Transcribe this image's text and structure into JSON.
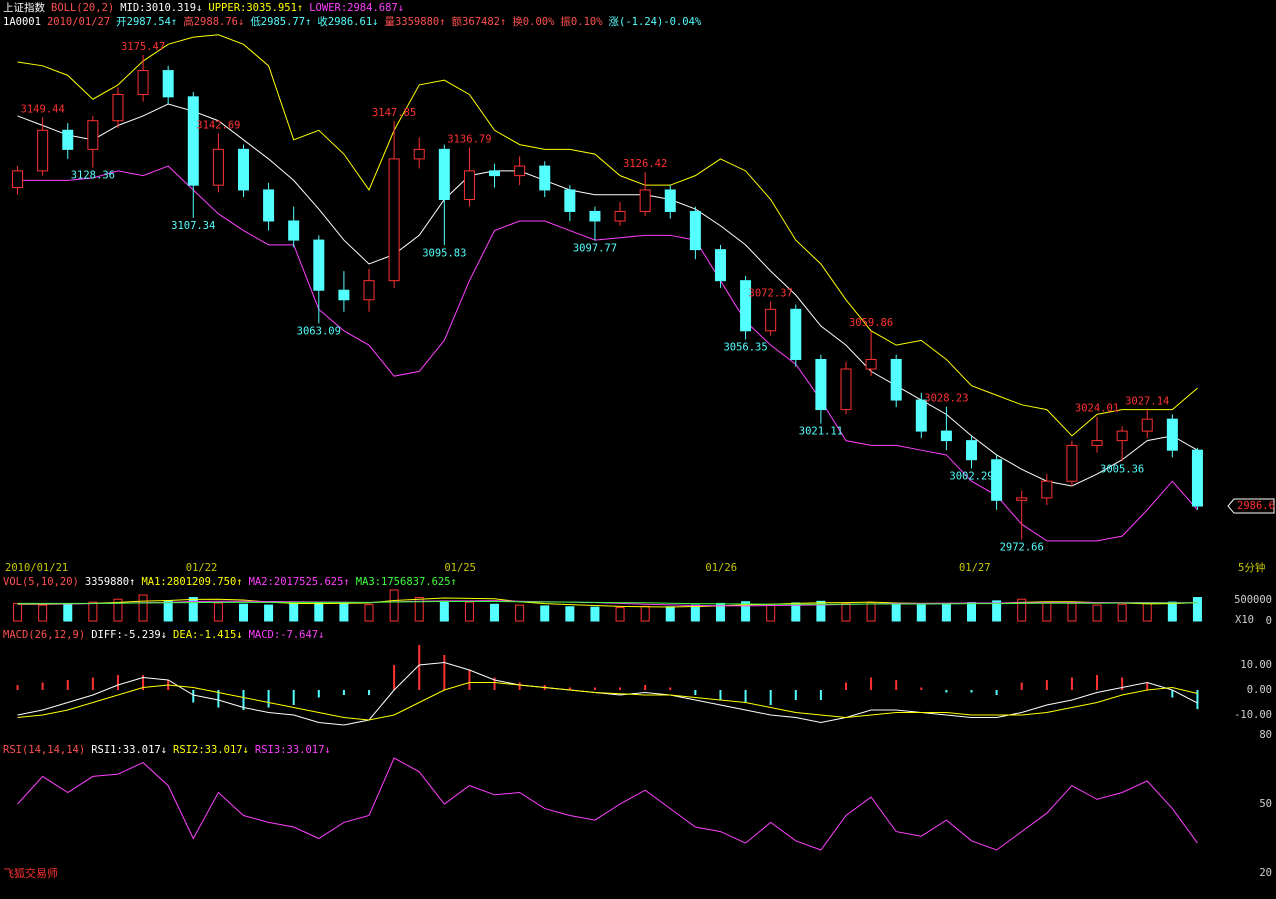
{
  "chart_data": [
    {
      "type": "candlestick",
      "title": "上证指数",
      "legend": [
        {
          "text": "BOLL(20,2)",
          "color": "#ff5050"
        },
        {
          "text": "MID:3010.319↓",
          "color": "#ffffff"
        },
        {
          "text": "UPPER:3035.951↑",
          "color": "#ffff00"
        },
        {
          "text": "LOWER:2984.687↓",
          "color": "#ff40ff"
        }
      ],
      "info": [
        {
          "text": "1A0001",
          "color": "#ffffff"
        },
        {
          "text": "2010/01/27",
          "color": "#ff5050"
        },
        {
          "text": "开2987.54↑",
          "color": "#54ffff"
        },
        {
          "text": "高2988.76↓",
          "color": "#ff5050"
        },
        {
          "text": "低2985.77↑",
          "color": "#54ffff"
        },
        {
          "text": "收2986.61↓",
          "color": "#54ffff"
        },
        {
          "text": "量3359880↑",
          "color": "#ff5050"
        },
        {
          "text": "额367482↑",
          "color": "#ff5050"
        },
        {
          "text": "换0.00%",
          "color": "#ff5050"
        },
        {
          "text": "振0.10%",
          "color": "#ff5050"
        },
        {
          "text": "涨(-1.24)-0.04%",
          "color": "#54ffff"
        }
      ],
      "x": [
        0,
        1,
        2,
        3,
        4,
        5,
        6,
        7,
        8,
        9,
        10,
        11,
        12,
        13,
        14,
        15,
        16,
        17,
        18,
        19,
        20,
        21,
        22,
        23,
        24,
        25,
        26,
        27,
        28,
        29,
        30,
        31,
        32,
        33,
        34,
        35,
        36,
        37,
        38,
        39,
        40,
        41,
        42,
        43,
        44,
        45,
        46,
        47
      ],
      "open": [
        3120,
        3127,
        3144,
        3136,
        3148,
        3159,
        3169,
        3158,
        3121,
        3136,
        3119,
        3106,
        3098,
        3077,
        3073,
        3081,
        3132,
        3136,
        3115,
        3127,
        3125,
        3129,
        3119,
        3110,
        3106,
        3110,
        3119,
        3110,
        3094,
        3081,
        3060,
        3069,
        3048,
        3027,
        3044,
        3048,
        3031,
        3018,
        3014,
        3006,
        2989,
        2990,
        2997,
        3012,
        3014,
        3018,
        3023,
        3010
      ],
      "high": [
        3129,
        3149.44,
        3147,
        3150,
        3162,
        3175.47,
        3171,
        3160,
        3142.69,
        3138,
        3122,
        3112,
        3100,
        3085,
        3086,
        3147.85,
        3141,
        3138,
        3136.79,
        3130,
        3133,
        3131,
        3121,
        3112,
        3114,
        3126.42,
        3121,
        3112,
        3096,
        3083,
        3072.37,
        3071,
        3050,
        3047,
        3059.86,
        3050,
        3034,
        3028.23,
        3016,
        3008,
        2993,
        3000,
        3014,
        3024.01,
        3020,
        3027.14,
        3025,
        3011
      ],
      "low": [
        3117,
        3125,
        3132,
        3128.36,
        3145,
        3156,
        3155,
        3107.34,
        3118,
        3116,
        3102,
        3095,
        3063.09,
        3068,
        3068,
        3078,
        3128,
        3095.83,
        3112,
        3120,
        3121,
        3116,
        3106,
        3097.77,
        3104,
        3108,
        3107,
        3090,
        3078,
        3056.35,
        3058,
        3045,
        3021.11,
        3025,
        3041,
        3028,
        3015,
        3010,
        3002.29,
        2985,
        2972.66,
        2987,
        2995,
        3009,
        3005.36,
        3015,
        3007,
        2985
      ],
      "close": [
        3127,
        3144,
        3136,
        3148,
        3159,
        3169,
        3158,
        3121,
        3136,
        3119,
        3106,
        3098,
        3077,
        3073,
        3081,
        3132,
        3136,
        3115,
        3127,
        3125,
        3129,
        3119,
        3110,
        3106,
        3110,
        3119,
        3110,
        3094,
        3081,
        3060,
        3069,
        3048,
        3027,
        3044,
        3048,
        3031,
        3018,
        3014,
        3006,
        2989,
        2990,
        2997,
        3012,
        3014,
        3018,
        3023,
        3010,
        2986.61
      ],
      "up_color": "#ff3232",
      "down_color": "#54ffff",
      "series": [
        {
          "color": "#ffffff",
          "values": [
            3150,
            3146,
            3142,
            3140,
            3146,
            3150,
            3155,
            3152,
            3148,
            3140,
            3132,
            3123,
            3111,
            3098,
            3088,
            3092,
            3100,
            3115,
            3125,
            3127,
            3127,
            3123,
            3119,
            3117,
            3117,
            3117,
            3115,
            3111,
            3104,
            3096,
            3085,
            3075,
            3062,
            3054,
            3043,
            3037,
            3031,
            3025,
            3016,
            3008,
            3002,
            2997,
            2995,
            3000,
            3006,
            3014,
            3016,
            3010
          ]
        },
        {
          "color": "#ffff00",
          "values": [
            3172.6,
            3171,
            3167,
            3157,
            3163,
            3173,
            3180,
            3183,
            3184,
            3180,
            3171,
            3140,
            3144,
            3134,
            3119,
            3144,
            3163,
            3165,
            3159,
            3144,
            3138,
            3136,
            3136,
            3134,
            3125,
            3121,
            3121,
            3125,
            3132,
            3127,
            3115,
            3098,
            3088,
            3073,
            3060,
            3054,
            3056,
            3048,
            3037,
            3033,
            3029,
            3027,
            3016,
            3025,
            3027,
            3027,
            3027,
            3036
          ]
        },
        {
          "color": "#ff40ff",
          "values": [
            3123,
            3123,
            3123,
            3124,
            3127,
            3125,
            3129,
            3119,
            3109,
            3102,
            3096,
            3096,
            3069,
            3060,
            3054,
            3041,
            3043,
            3056,
            3081,
            3102,
            3106,
            3106,
            3102,
            3098,
            3099,
            3100,
            3100,
            3098,
            3081,
            3064,
            3054,
            3046,
            3031,
            3014,
            3012,
            3012,
            3010,
            3008,
            2997,
            2991,
            2979,
            2972,
            2972,
            2972,
            2974,
            2985,
            2997,
            2985
          ]
        }
      ],
      "annotations": [
        {
          "x": 1,
          "value": 3149.44,
          "kind": "high"
        },
        {
          "x": 5,
          "value": 3175.47,
          "kind": "high"
        },
        {
          "x": 8,
          "value": 3142.69,
          "kind": "high"
        },
        {
          "x": 15,
          "value": 3147.85,
          "kind": "high"
        },
        {
          "x": 18,
          "value": 3136.79,
          "kind": "high"
        },
        {
          "x": 25,
          "value": 3126.42,
          "kind": "high"
        },
        {
          "x": 30,
          "value": 3072.37,
          "kind": "high"
        },
        {
          "x": 34,
          "value": 3059.86,
          "kind": "high"
        },
        {
          "x": 37,
          "value": 3028.23,
          "kind": "high"
        },
        {
          "x": 43,
          "value": 3024.01,
          "kind": "high"
        },
        {
          "x": 45,
          "value": 3027.14,
          "kind": "high"
        },
        {
          "x": 3,
          "value": 3128.36,
          "kind": "low"
        },
        {
          "x": 7,
          "value": 3107.34,
          "kind": "low"
        },
        {
          "x": 12,
          "value": 3063.09,
          "kind": "low"
        },
        {
          "x": 17,
          "value": 3095.83,
          "kind": "low"
        },
        {
          "x": 23,
          "value": 3097.77,
          "kind": "low"
        },
        {
          "x": 29,
          "value": 3056.35,
          "kind": "low"
        },
        {
          "x": 32,
          "value": 3021.11,
          "kind": "low"
        },
        {
          "x": 38,
          "value": 3002.29,
          "kind": "low"
        },
        {
          "x": 40,
          "value": 2972.66,
          "kind": "low"
        },
        {
          "x": 44,
          "value": 3005.36,
          "kind": "low"
        }
      ],
      "xlim": [
        -0.5,
        47.5
      ],
      "xticks": [
        {
          "value": -0.5,
          "label": "2010/01/21"
        },
        {
          "value": 6.7,
          "label": "01/22"
        },
        {
          "value": 17.0,
          "label": "01/25"
        },
        {
          "value": 27.4,
          "label": "01/26"
        },
        {
          "value": 37.5,
          "label": "01/27"
        }
      ],
      "ylim": [
        2964,
        3186
      ],
      "last_price": 2986.6,
      "period": "5分钟",
      "brand": "飞狐交易师"
    },
    {
      "type": "volume",
      "legend": [
        {
          "text": "VOL(5,10,20)",
          "color": "#ff5050"
        },
        {
          "text": "3359880↑",
          "color": "#ffffff"
        },
        {
          "text": "MA1:2801209.750↑",
          "color": "#ffff00"
        },
        {
          "text": "MA2:2017525.625↑",
          "color": "#ff40ff"
        },
        {
          "text": "MA3:1756837.625↑",
          "color": "#40ff40"
        }
      ],
      "values": [
        420000,
        380000,
        400000,
        450000,
        520000,
        620000,
        480000,
        560000,
        430000,
        400000,
        380000,
        420000,
        450000,
        420000,
        390000,
        740000,
        560000,
        480000,
        450000,
        400000,
        380000,
        360000,
        340000,
        330000,
        320000,
        350000,
        340000,
        380000,
        420000,
        460000,
        400000,
        430000,
        470000,
        420000,
        440000,
        400000,
        380000,
        420000,
        440000,
        480000,
        520000,
        440000,
        420000,
        380000,
        400000,
        420000,
        450000,
        560000
      ],
      "series": [
        {
          "color": "#ffff00",
          "values": [
            400000,
            400000,
            405000,
            420000,
            445000,
            475000,
            490000,
            515000,
            520000,
            500000,
            450000,
            420000,
            415000,
            425000,
            430000,
            490000,
            520000,
            550000,
            540000,
            530000,
            460000,
            415000,
            390000,
            370000,
            350000,
            340000,
            335000,
            345000,
            360000,
            385000,
            400000,
            420000,
            435000,
            440000,
            450000,
            430000,
            420000,
            420000,
            420000,
            425000,
            445000,
            460000,
            460000,
            440000,
            430000,
            410000,
            415000,
            440000
          ]
        },
        {
          "color": "#ff40ff",
          "values": [
            410000,
            410000,
            410000,
            415000,
            425000,
            440000,
            445000,
            465000,
            470000,
            470000,
            465000,
            460000,
            455000,
            450000,
            440000,
            460000,
            470000,
            480000,
            480000,
            485000,
            470000,
            460000,
            450000,
            440000,
            420000,
            400000,
            385000,
            370000,
            365000,
            360000,
            370000,
            375000,
            385000,
            395000,
            410000,
            420000,
            420000,
            425000,
            430000,
            430000,
            435000,
            440000,
            440000,
            440000,
            440000,
            440000,
            435000,
            440000
          ]
        },
        {
          "color": "#40ff40",
          "values": [
            420000,
            420000,
            420000,
            420000,
            425000,
            430000,
            435000,
            440000,
            445000,
            445000,
            445000,
            445000,
            445000,
            445000,
            445000,
            455000,
            460000,
            465000,
            465000,
            465000,
            460000,
            455000,
            450000,
            445000,
            440000,
            435000,
            425000,
            415000,
            410000,
            405000,
            400000,
            400000,
            400000,
            400000,
            405000,
            405000,
            405000,
            410000,
            415000,
            415000,
            420000,
            425000,
            425000,
            425000,
            430000,
            430000,
            430000,
            435000
          ]
        }
      ],
      "ylim": [
        0,
        740000
      ],
      "yticks": [
        0,
        500000
      ],
      "unit_label": "X10"
    },
    {
      "type": "macd",
      "legend": [
        {
          "text": "MACD(26,12,9)",
          "color": "#ff5050"
        },
        {
          "text": "DIFF:-5.239↓",
          "color": "#ffffff"
        },
        {
          "text": "DEA:-1.415↓",
          "color": "#ffff00"
        },
        {
          "text": "MACD:-7.647↓",
          "color": "#ff40ff"
        }
      ],
      "values": [
        2,
        3,
        4,
        5,
        6,
        6,
        4,
        -5,
        -7,
        -8,
        -7,
        -6,
        -3,
        -2,
        -2,
        10,
        18,
        14,
        8,
        5,
        3,
        2,
        1,
        1,
        1,
        2,
        1,
        -2,
        -4,
        -5,
        -6,
        -4,
        -4,
        3,
        5,
        4,
        1,
        -1,
        -1,
        -2,
        3,
        4,
        5,
        6,
        5,
        3,
        -3,
        -7.647
      ],
      "series": [
        {
          "color": "#ffffff",
          "values": [
            -10,
            -8,
            -5,
            -2,
            2,
            5,
            4,
            -2,
            -4,
            -7,
            -9,
            -10,
            -13,
            -14,
            -12,
            0,
            10,
            11,
            8,
            4,
            2,
            1,
            0,
            -1,
            -2,
            -1,
            -2,
            -4,
            -6,
            -8,
            -10,
            -11,
            -13,
            -11,
            -8,
            -8,
            -9,
            -10,
            -11,
            -11,
            -9,
            -6,
            -4,
            -1,
            1,
            3,
            0,
            -5.239
          ]
        },
        {
          "color": "#ffff00",
          "values": [
            -11,
            -10,
            -8,
            -5,
            -2,
            1,
            2,
            1,
            -1,
            -3,
            -5,
            -7,
            -9,
            -11,
            -12,
            -10,
            -5,
            0,
            3,
            3,
            2,
            1,
            0,
            -1,
            -1.5,
            -2,
            -2,
            -3,
            -4,
            -5,
            -7,
            -9,
            -10,
            -11,
            -10,
            -9,
            -9,
            -9,
            -10,
            -10,
            -10,
            -9,
            -7,
            -5,
            -2,
            0,
            1,
            -1.415
          ]
        }
      ],
      "ylim": [
        -20,
        20
      ],
      "yticks": [
        {
          "value": 10,
          "label": "10.00"
        },
        {
          "value": 0,
          "label": "0.00"
        },
        {
          "value": -10,
          "label": "-10.00"
        }
      ]
    },
    {
      "type": "line",
      "legend": [
        {
          "text": "RSI(14,14,14)",
          "color": "#ff5050"
        },
        {
          "text": "RSI1:33.017↓",
          "color": "#ffffff"
        },
        {
          "text": "RSI2:33.017↓",
          "color": "#ffff00"
        },
        {
          "text": "RSI3:33.017↓",
          "color": "#ff40ff"
        }
      ],
      "series": [
        {
          "color": "#ff40ff",
          "values": [
            50,
            62,
            55,
            62,
            63,
            68,
            58,
            35,
            55,
            45,
            42,
            40,
            35,
            42,
            45,
            70,
            64,
            50,
            58,
            54,
            55,
            48,
            45,
            43,
            50,
            56,
            48,
            40,
            38,
            33,
            42,
            34,
            30,
            45,
            53,
            38,
            36,
            43,
            34,
            30,
            38,
            46,
            58,
            52,
            55,
            60,
            48,
            33.017
          ]
        }
      ],
      "ylim": [
        20,
        80
      ],
      "yticks": [
        20,
        50,
        80
      ]
    }
  ]
}
